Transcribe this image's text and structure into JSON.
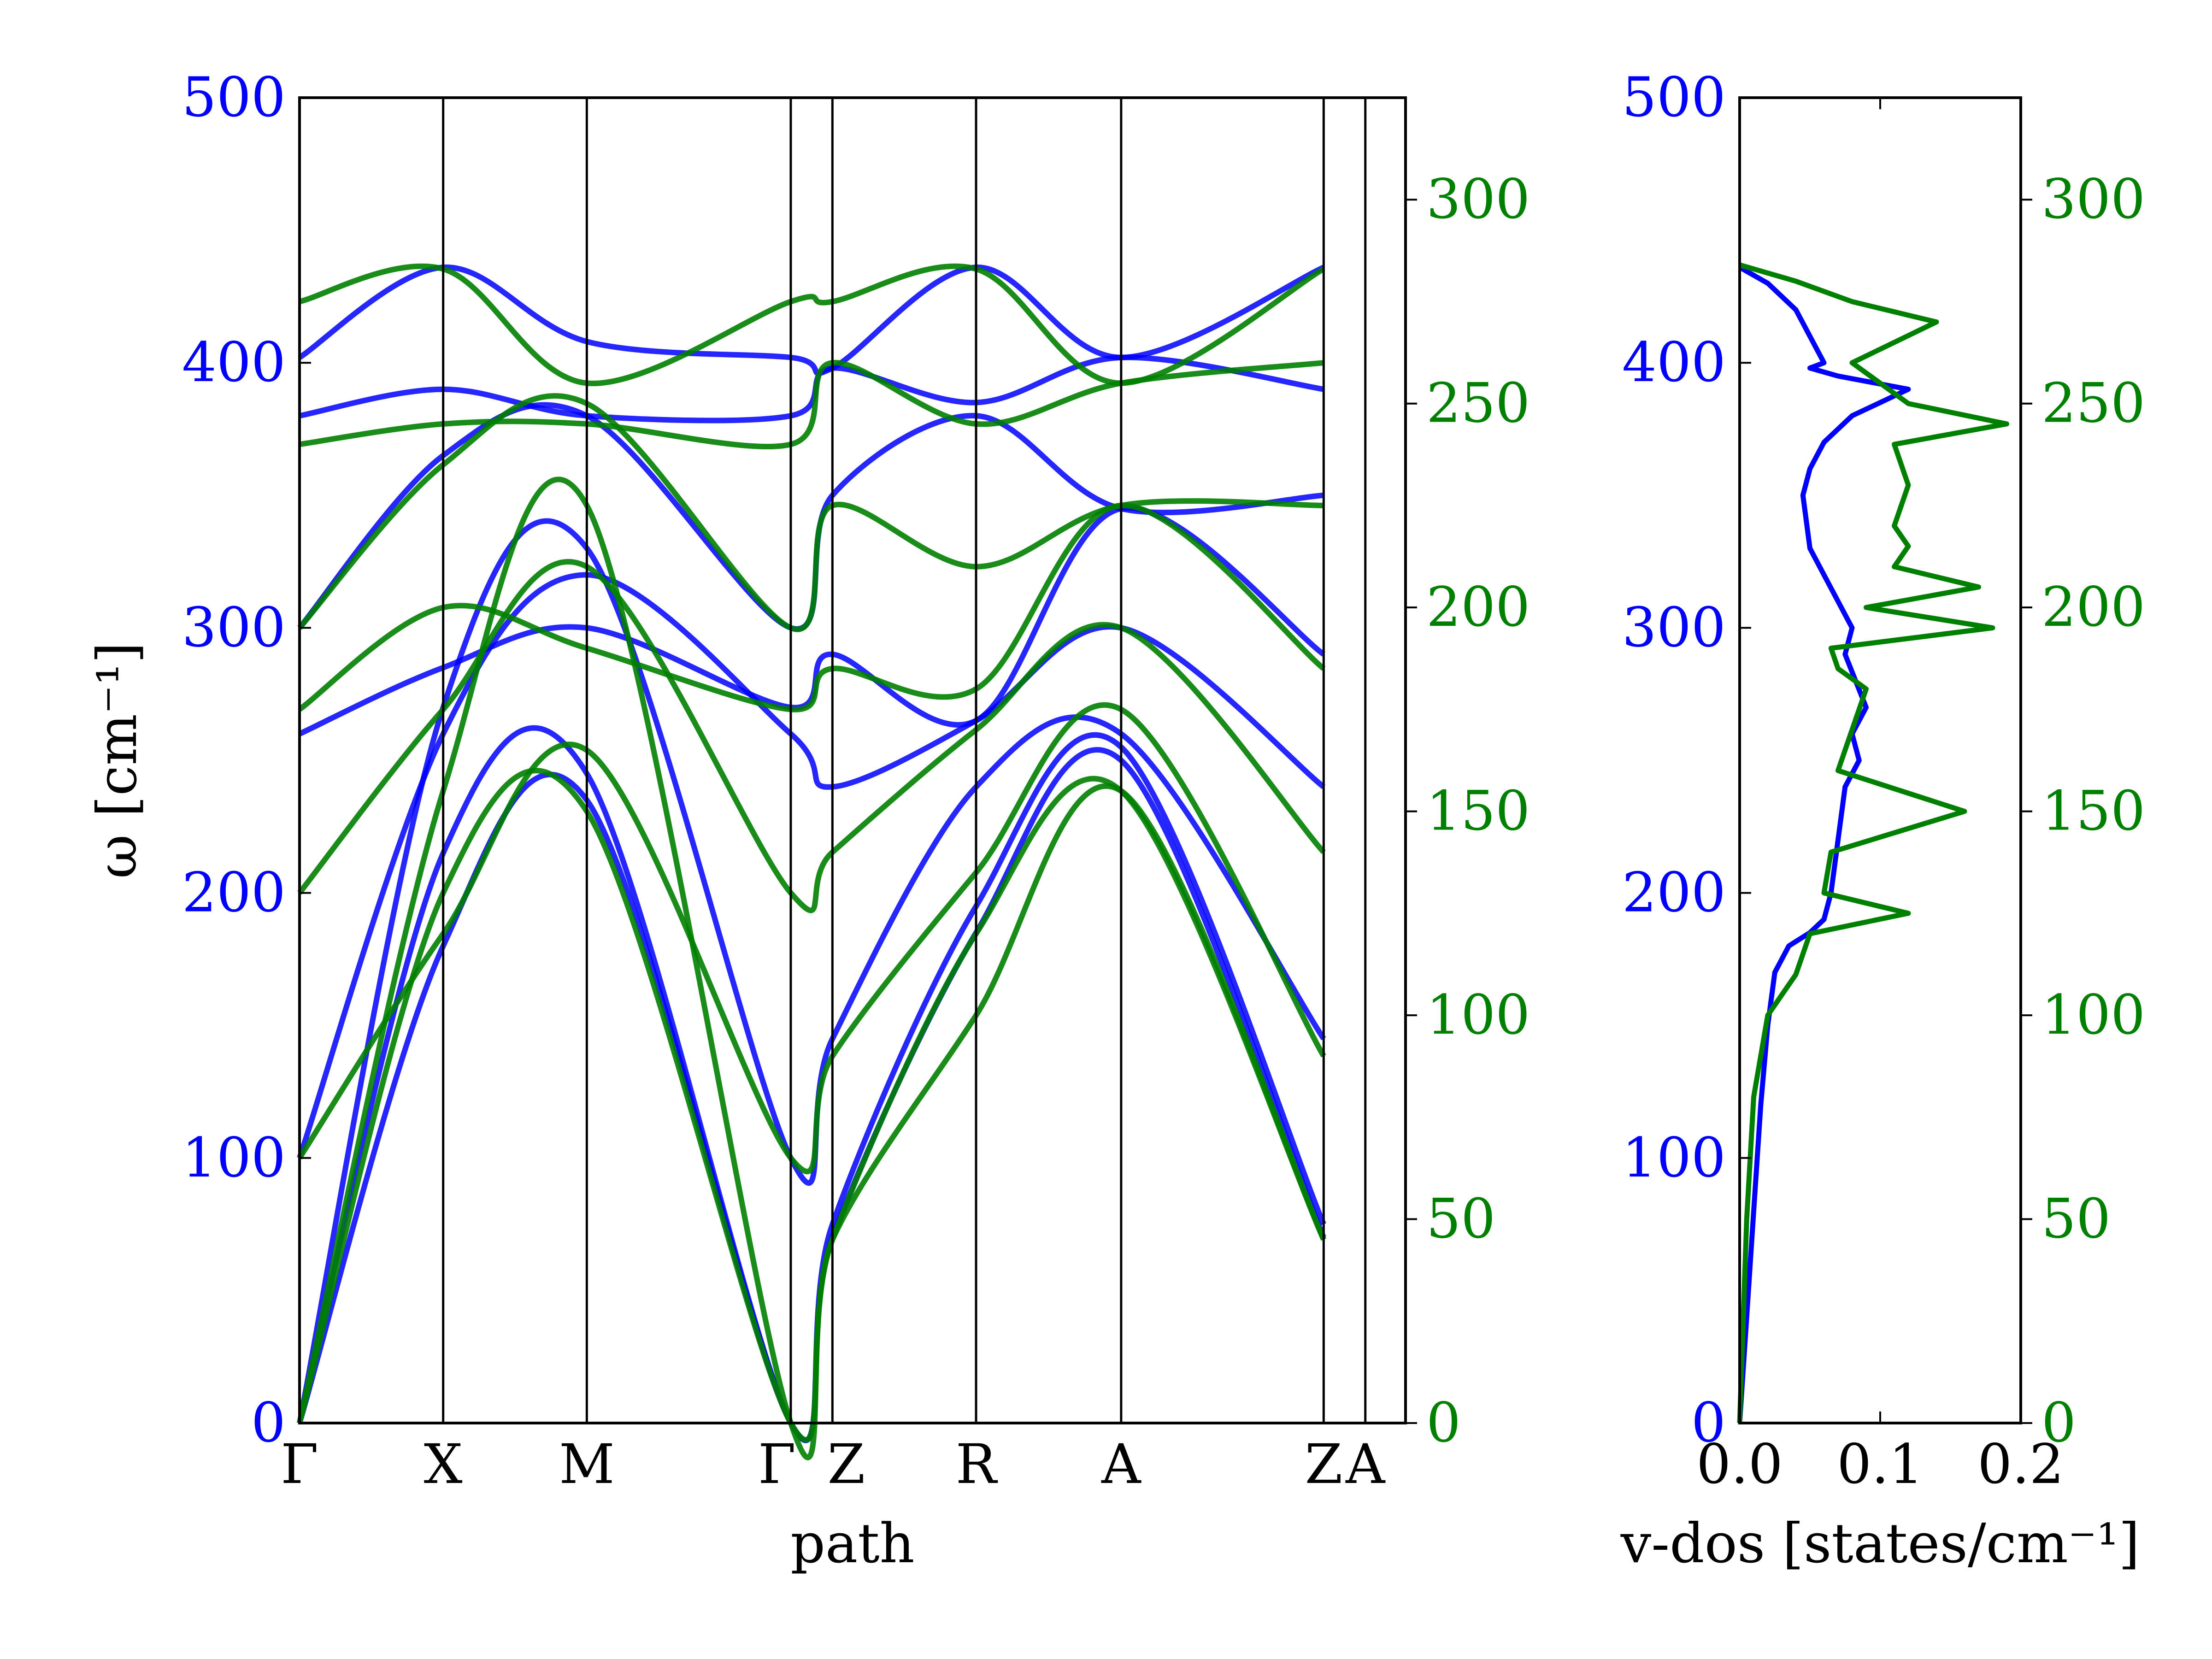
{
  "chart_data": [
    {
      "type": "line",
      "title": "",
      "xlabel": "path",
      "ylabel": "ω [cm⁻¹]",
      "ylim_left": [
        0,
        500
      ],
      "ylim_right": [
        0,
        325
      ],
      "left_ticks": [
        "0",
        "100",
        "200",
        "300",
        "400",
        "500"
      ],
      "right_ticks": [
        "0",
        "50",
        "100",
        "150",
        "200",
        "250",
        "300"
      ],
      "x_ticks": [
        "Γ",
        "X",
        "M",
        "Γ",
        "Z",
        "R",
        "A",
        "Z",
        "A"
      ],
      "x_tick_positions": [
        0,
        1,
        2,
        3.42,
        3.71,
        4.71,
        5.72,
        7.13,
        7.42
      ],
      "xlim": [
        0,
        7.7
      ],
      "colors": {
        "left_axis": "#0000ff",
        "right_axis": "#008000"
      },
      "series": [
        {
          "color": "#0000ff",
          "x": [
            0,
            1,
            2,
            3.42,
            3.71,
            4.71,
            5.72,
            7.13
          ],
          "y": [
            0,
            180,
            235,
            0,
            70,
            185,
            250,
            70
          ]
        },
        {
          "color": "#0000ff",
          "x": [
            0,
            1,
            2,
            3.42,
            3.71,
            4.71,
            5.72,
            7.13
          ],
          "y": [
            0,
            215,
            245,
            0,
            75,
            195,
            255,
            75
          ]
        },
        {
          "color": "#0000ff",
          "x": [
            0,
            1,
            2,
            3.42,
            3.71,
            4.71,
            5.72,
            7.13
          ],
          "y": [
            0,
            270,
            330,
            100,
            145,
            240,
            260,
            145
          ]
        },
        {
          "color": "#0000ff",
          "x": [
            0,
            1,
            2,
            3.42,
            3.71,
            4.71,
            5.72,
            7.13
          ],
          "y": [
            100,
            260,
            320,
            260,
            240,
            265,
            300,
            240
          ]
        },
        {
          "color": "#0000ff",
          "x": [
            0,
            1,
            2,
            3.42,
            3.71,
            4.71,
            5.72,
            7.13
          ],
          "y": [
            260,
            285,
            300,
            270,
            290,
            265,
            345,
            290
          ]
        },
        {
          "color": "#0000ff",
          "x": [
            0,
            1,
            2,
            3.42,
            3.71,
            4.71,
            5.72,
            7.13
          ],
          "y": [
            300,
            365,
            380,
            300,
            350,
            380,
            345,
            350
          ]
        },
        {
          "color": "#0000ff",
          "x": [
            0,
            1,
            2,
            3.42,
            3.71,
            4.71,
            5.72,
            7.13
          ],
          "y": [
            380,
            390,
            380,
            380,
            398,
            385,
            402,
            390
          ]
        },
        {
          "color": "#0000ff",
          "x": [
            0,
            1,
            2,
            3.42,
            3.71,
            4.71,
            5.72,
            7.13
          ],
          "y": [
            402,
            436,
            408,
            402,
            398,
            436,
            402,
            436
          ]
        },
        {
          "color": "#008000",
          "x": [
            0,
            1,
            2,
            3.42,
            3.71,
            4.71,
            5.72,
            7.13
          ],
          "y": [
            0,
            155,
            225,
            0,
            45,
            100,
            155,
            45
          ]
        },
        {
          "color": "#008000",
          "x": [
            0,
            1,
            2,
            3.42,
            3.71,
            4.71,
            5.72,
            7.13
          ],
          "y": [
            0,
            130,
            150,
            0,
            45,
            120,
            155,
            45
          ]
        },
        {
          "color": "#008000",
          "x": [
            0,
            1,
            2,
            3.42,
            3.71,
            4.71,
            5.72,
            7.13
          ],
          "y": [
            65,
            120,
            165,
            65,
            90,
            135,
            175,
            90
          ]
        },
        {
          "color": "#008000",
          "x": [
            0,
            1,
            2,
            3.42,
            3.71,
            4.71,
            5.72,
            7.13
          ],
          "y": [
            130,
            175,
            210,
            130,
            140,
            170,
            195,
            140
          ]
        },
        {
          "color": "#008000",
          "x": [
            0,
            1,
            2,
            3.42,
            3.71,
            4.71,
            5.72,
            7.13
          ],
          "y": [
            175,
            200,
            190,
            175,
            185,
            180,
            225,
            185
          ]
        },
        {
          "color": "#008000",
          "x": [
            0,
            1,
            2,
            3.42,
            3.71,
            4.71,
            5.72,
            7.13
          ],
          "y": [
            195,
            235,
            250,
            195,
            225,
            210,
            225,
            225
          ]
        },
        {
          "color": "#008000",
          "x": [
            0,
            1,
            2,
            3.42,
            3.71,
            4.71,
            5.72,
            7.13
          ],
          "y": [
            240,
            245,
            245,
            240,
            260,
            245,
            255,
            260
          ]
        },
        {
          "color": "#008000",
          "x": [
            0,
            1,
            2,
            3.42,
            3.71,
            4.71,
            5.72,
            7.13
          ],
          "y": [
            275,
            283,
            255,
            275,
            275,
            283,
            255,
            283
          ]
        }
      ]
    },
    {
      "type": "line",
      "title": "",
      "xlabel": "v-dos [states/cm⁻¹]",
      "ylabel": "",
      "xlim": [
        0,
        0.2
      ],
      "x_ticks": [
        "0.0",
        "0.1",
        "0.2"
      ],
      "ylim_left": [
        0,
        500
      ],
      "ylim_right": [
        0,
        325
      ],
      "left_ticks": [
        "0",
        "100",
        "200",
        "300",
        "400",
        "500"
      ],
      "right_ticks": [
        "0",
        "50",
        "100",
        "150",
        "200",
        "250",
        "300"
      ],
      "series": [
        {
          "color": "#0000ff",
          "y": [
            0,
            40,
            80,
            120,
            150,
            170,
            180,
            185,
            190,
            200,
            220,
            240,
            250,
            260,
            270,
            290,
            300,
            320,
            330,
            350,
            360,
            370,
            380,
            385,
            390,
            395,
            398,
            400,
            420,
            430,
            436
          ],
          "x": [
            0,
            0.005,
            0.01,
            0.015,
            0.02,
            0.025,
            0.035,
            0.05,
            0.06,
            0.065,
            0.07,
            0.075,
            0.085,
            0.08,
            0.09,
            0.075,
            0.08,
            0.06,
            0.05,
            0.045,
            0.05,
            0.06,
            0.08,
            0.1,
            0.12,
            0.07,
            0.05,
            0.06,
            0.04,
            0.02,
            0.0
          ]
        },
        {
          "color": "#008000",
          "y": [
            0,
            50,
            80,
            100,
            110,
            120,
            125,
            130,
            140,
            150,
            160,
            170,
            180,
            185,
            190,
            195,
            200,
            205,
            210,
            215,
            220,
            230,
            240,
            245,
            250,
            255,
            260,
            270,
            275,
            280,
            284
          ],
          "x": [
            0,
            0.005,
            0.01,
            0.02,
            0.04,
            0.05,
            0.12,
            0.06,
            0.065,
            0.16,
            0.07,
            0.08,
            0.09,
            0.07,
            0.065,
            0.18,
            0.09,
            0.17,
            0.11,
            0.12,
            0.11,
            0.12,
            0.11,
            0.19,
            0.12,
            0.1,
            0.08,
            0.14,
            0.08,
            0.04,
            0.0
          ]
        }
      ]
    }
  ]
}
